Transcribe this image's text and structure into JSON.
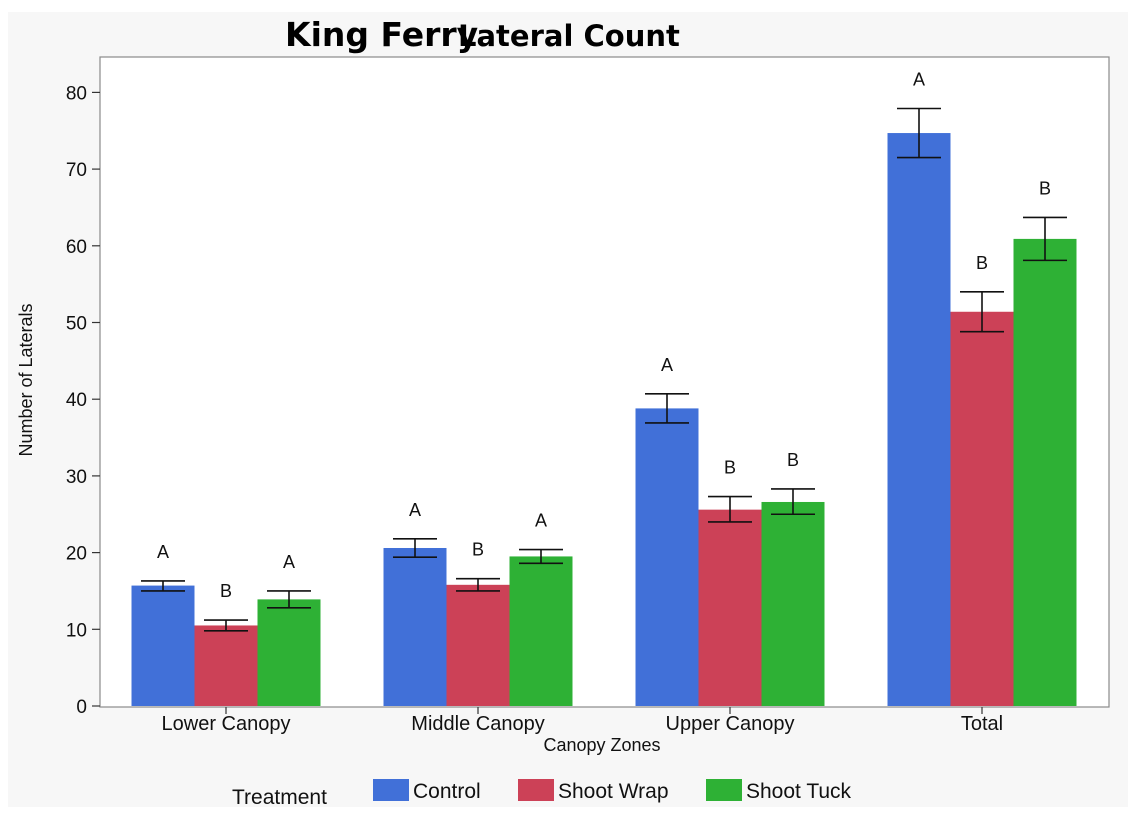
{
  "page": {
    "title_part1": "King Ferry",
    "title_part2": "Lateral Count",
    "background": "#f7f7f7"
  },
  "chart_data": {
    "type": "bar",
    "title": "King Ferry Lateral Count",
    "xlabel": "Canopy Zones",
    "ylabel": "Number of Laterals",
    "ylim": [
      0,
      85
    ],
    "yticks": [
      0,
      10,
      20,
      30,
      40,
      50,
      60,
      70,
      80
    ],
    "grid": false,
    "legend_placement": "bottom",
    "legend_title": "Treatment",
    "categories": [
      "Lower Canopy",
      "Middle Canopy",
      "Upper Canopy",
      "Total"
    ],
    "series": [
      {
        "name": "Control",
        "color": "#4170d8",
        "values": [
          15.7,
          20.6,
          38.8,
          74.7
        ],
        "error_low": [
          15.0,
          19.4,
          36.9,
          71.5
        ],
        "error_high": [
          16.3,
          21.8,
          40.7,
          77.9
        ],
        "letters": [
          "A",
          "A",
          "A",
          "A"
        ]
      },
      {
        "name": "Shoot Wrap",
        "color": "#cc4157",
        "values": [
          10.5,
          15.8,
          25.6,
          51.4
        ],
        "error_low": [
          9.8,
          15.0,
          24.0,
          48.8
        ],
        "error_high": [
          11.2,
          16.6,
          27.3,
          54.0
        ],
        "letters": [
          "B",
          "B",
          "B",
          "B"
        ]
      },
      {
        "name": "Shoot Tuck",
        "color": "#2eb135",
        "values": [
          13.9,
          19.5,
          26.6,
          60.9
        ],
        "error_low": [
          12.8,
          18.6,
          25.0,
          58.1
        ],
        "error_high": [
          15.0,
          20.4,
          28.3,
          63.7
        ],
        "letters": [
          "A",
          "A",
          "B",
          "B"
        ]
      }
    ]
  }
}
